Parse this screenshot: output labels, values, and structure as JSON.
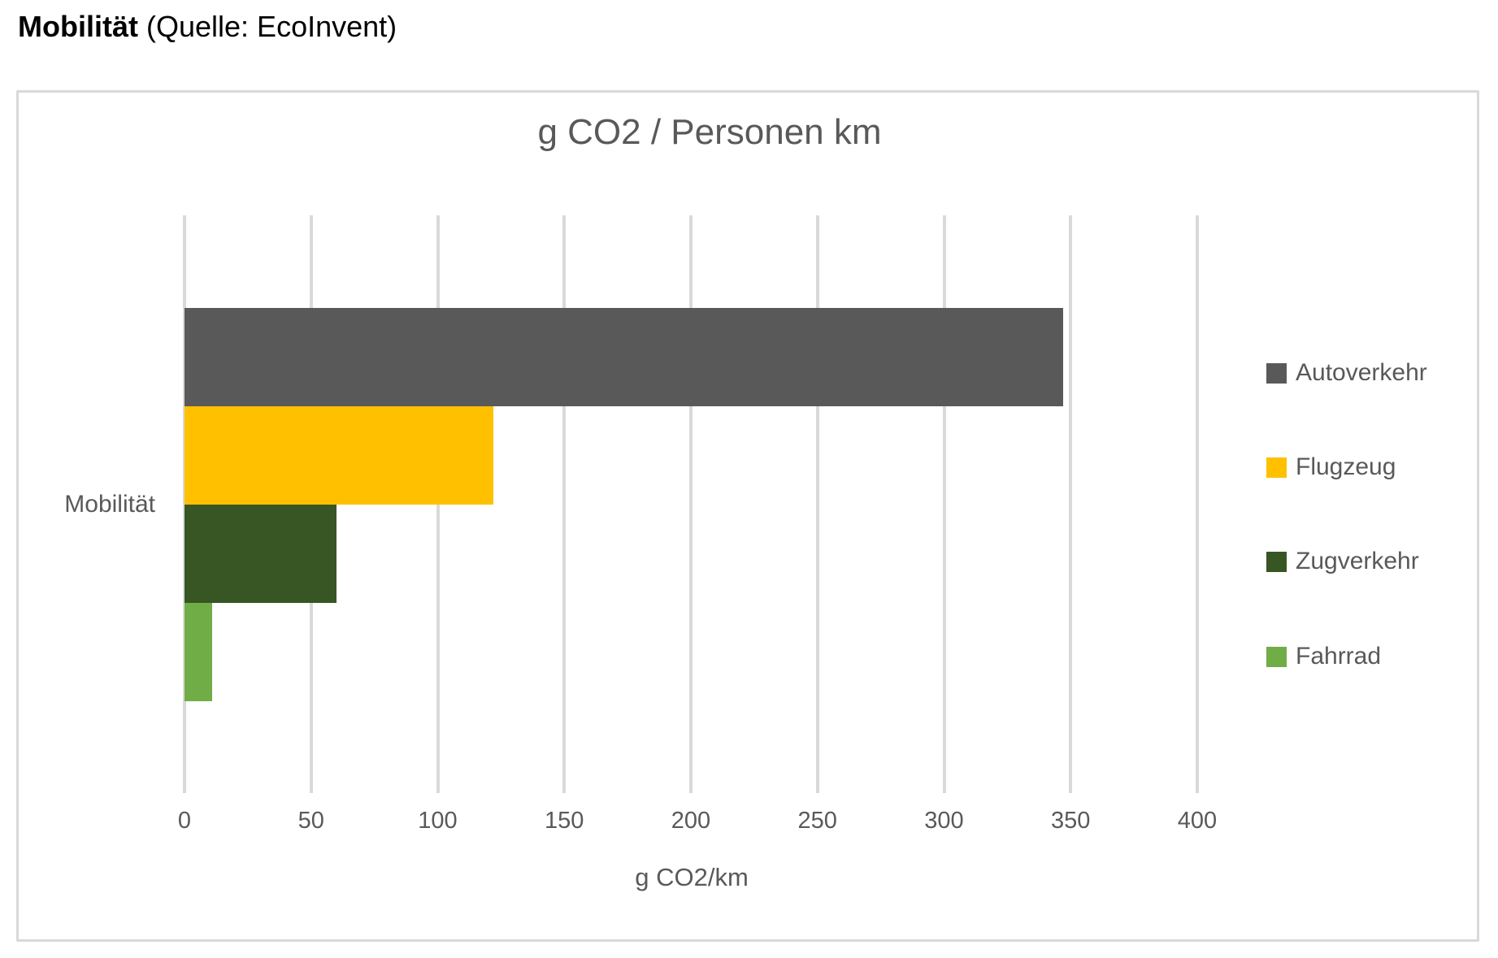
{
  "header": {
    "title": "Mobilität",
    "subtitle": "(Quelle: EcoInvent)"
  },
  "chart_data": {
    "type": "bar",
    "orientation": "horizontal",
    "title": "g CO2 / Personen km",
    "categories": [
      "Mobilität"
    ],
    "series": [
      {
        "name": "Autoverkehr",
        "values": [
          347
        ],
        "color": "#595959"
      },
      {
        "name": "Flugzeug",
        "values": [
          122
        ],
        "color": "#FFC000"
      },
      {
        "name": "Zugverkehr",
        "values": [
          60
        ],
        "color": "#375623"
      },
      {
        "name": "Fahrrad",
        "values": [
          11
        ],
        "color": "#70AD47"
      }
    ],
    "xlabel": "g CO2/km",
    "xlim": [
      0,
      400
    ],
    "xticks": [
      0,
      50,
      100,
      150,
      200,
      250,
      300,
      350,
      400
    ],
    "grid": true,
    "legend_position": "right",
    "colors": {
      "text": "#595959",
      "gridline": "#D9D9D9",
      "chart_border": "#D9D9D9"
    }
  }
}
